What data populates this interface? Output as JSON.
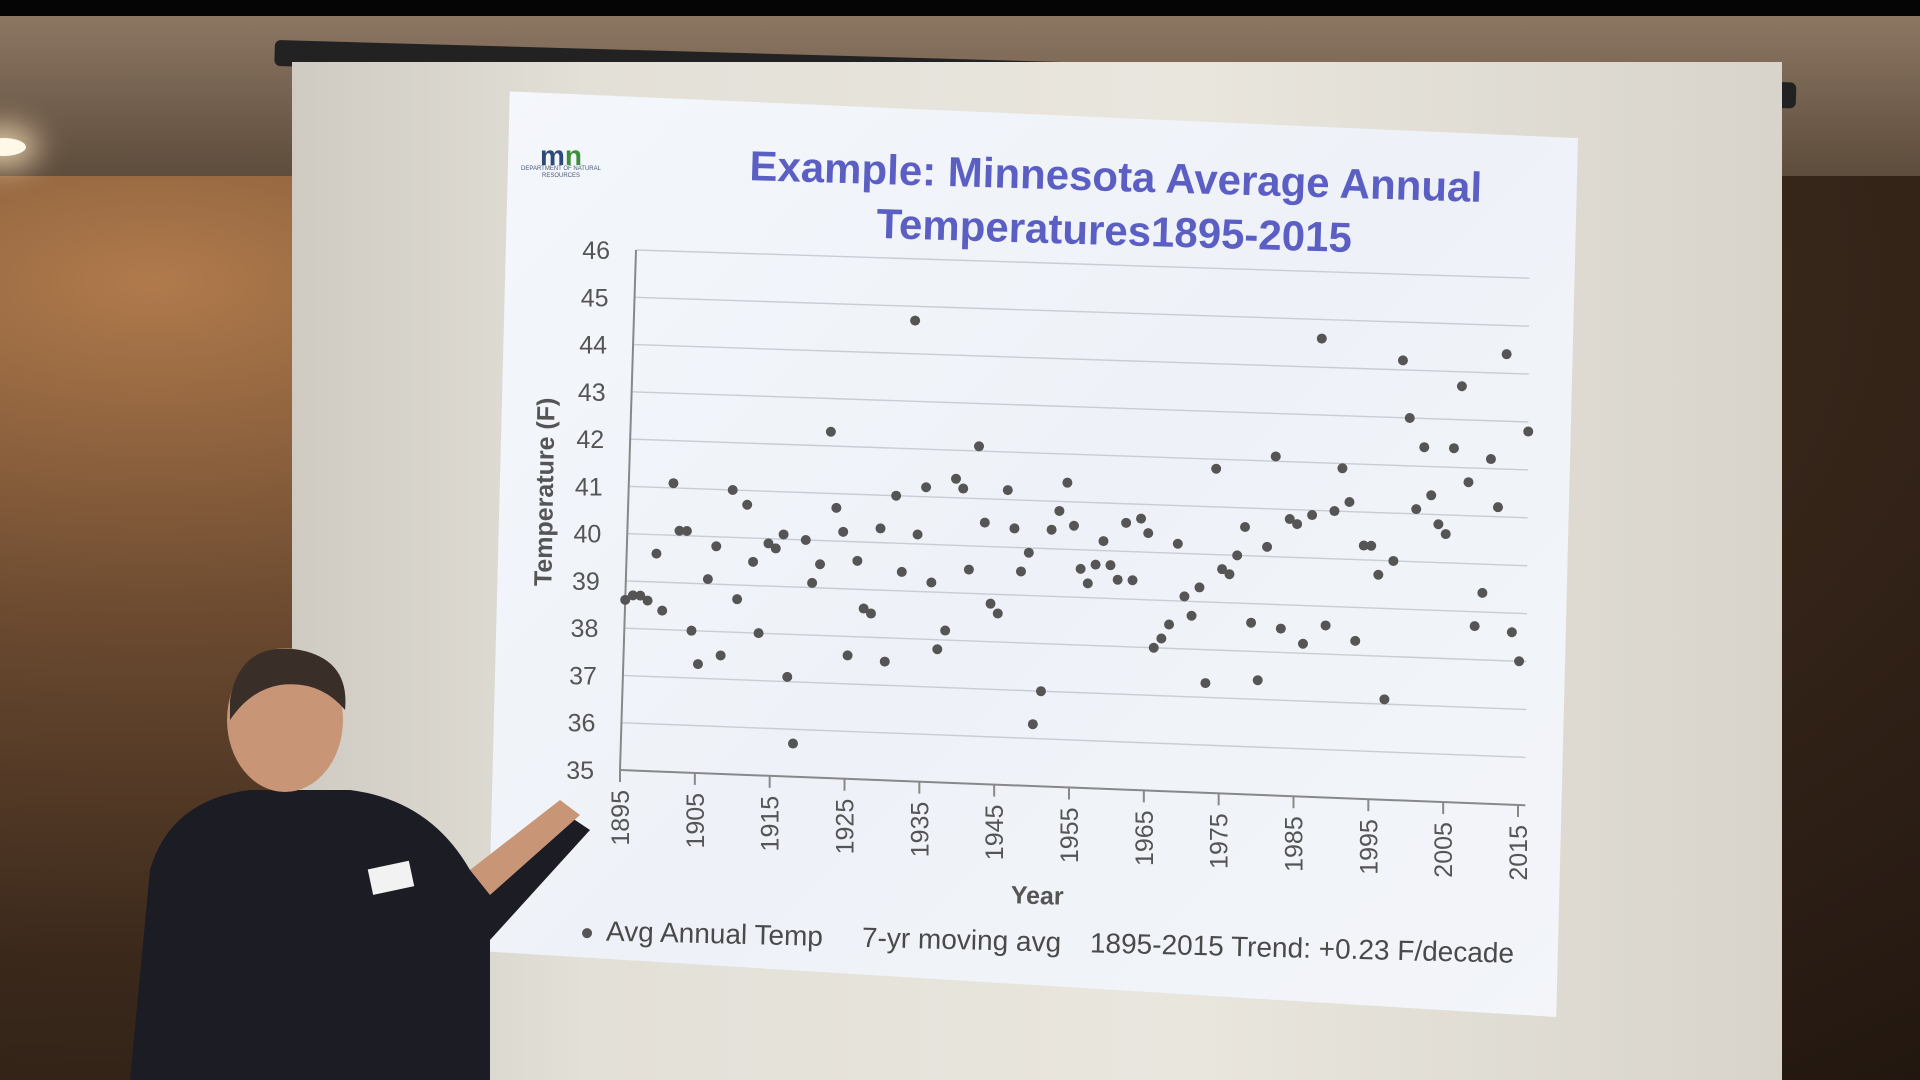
{
  "logo": {
    "mark": "m",
    "mark_accent": "n",
    "subtext": "DEPARTMENT OF NATURAL RESOURCES"
  },
  "chart_data": {
    "type": "scatter",
    "title": "Example: Minnesota Average Annual Temperatures1895-2015",
    "xlabel": "Year",
    "ylabel": "Temperature (F)",
    "xlim": [
      1895,
      2015
    ],
    "ylim": [
      35,
      46
    ],
    "xticks": [
      "1895",
      "1905",
      "1915",
      "1925",
      "1935",
      "1945",
      "1955",
      "1965",
      "1975",
      "1985",
      "1995",
      "2005",
      "2015"
    ],
    "yticks": [
      "35",
      "36",
      "37",
      "38",
      "39",
      "40",
      "41",
      "42",
      "43",
      "44",
      "45",
      "46"
    ],
    "grid": true,
    "series": [
      {
        "name": "Avg Annual Temp",
        "color": "#555555",
        "points": [
          [
            1895,
            38.6
          ],
          [
            1896,
            38.7
          ],
          [
            1897,
            38.7
          ],
          [
            1898,
            38.6
          ],
          [
            1899,
            39.6
          ],
          [
            1900,
            38.4
          ],
          [
            1901,
            41.1
          ],
          [
            1902,
            40.1
          ],
          [
            1903,
            40.1
          ],
          [
            1904,
            38.0
          ],
          [
            1905,
            37.3
          ],
          [
            1906,
            39.1
          ],
          [
            1907,
            39.8
          ],
          [
            1908,
            37.5
          ],
          [
            1909,
            41.0
          ],
          [
            1910,
            38.7
          ],
          [
            1911,
            40.7
          ],
          [
            1912,
            39.5
          ],
          [
            1913,
            38.0
          ],
          [
            1914,
            39.9
          ],
          [
            1915,
            39.8
          ],
          [
            1916,
            40.1
          ],
          [
            1917,
            37.1
          ],
          [
            1918,
            35.7
          ],
          [
            1919,
            40.0
          ],
          [
            1920,
            39.1
          ],
          [
            1921,
            39.5
          ],
          [
            1922,
            42.3
          ],
          [
            1923,
            40.7
          ],
          [
            1924,
            40.2
          ],
          [
            1925,
            37.6
          ],
          [
            1926,
            39.6
          ],
          [
            1927,
            38.6
          ],
          [
            1928,
            38.5
          ],
          [
            1929,
            40.3
          ],
          [
            1930,
            37.5
          ],
          [
            1931,
            41.0
          ],
          [
            1932,
            39.4
          ],
          [
            1933,
            44.7
          ],
          [
            1934,
            40.2
          ],
          [
            1935,
            41.2
          ],
          [
            1936,
            39.2
          ],
          [
            1937,
            37.8
          ],
          [
            1938,
            38.2
          ],
          [
            1939,
            41.4
          ],
          [
            1940,
            41.2
          ],
          [
            1941,
            39.5
          ],
          [
            1942,
            42.1
          ],
          [
            1943,
            40.5
          ],
          [
            1944,
            38.8
          ],
          [
            1945,
            38.6
          ],
          [
            1946,
            41.2
          ],
          [
            1947,
            40.4
          ],
          [
            1948,
            39.5
          ],
          [
            1949,
            39.9
          ],
          [
            1950,
            36.3
          ],
          [
            1951,
            37.0
          ],
          [
            1952,
            40.4
          ],
          [
            1953,
            40.8
          ],
          [
            1954,
            41.4
          ],
          [
            1955,
            40.5
          ],
          [
            1956,
            39.6
          ],
          [
            1957,
            39.3
          ],
          [
            1958,
            39.7
          ],
          [
            1959,
            40.2
          ],
          [
            1960,
            39.7
          ],
          [
            1961,
            39.4
          ],
          [
            1962,
            40.6
          ],
          [
            1963,
            39.4
          ],
          [
            1964,
            40.7
          ],
          [
            1965,
            40.4
          ],
          [
            1966,
            38.0
          ],
          [
            1967,
            38.2
          ],
          [
            1968,
            38.5
          ],
          [
            1969,
            40.2
          ],
          [
            1970,
            39.1
          ],
          [
            1971,
            38.7
          ],
          [
            1972,
            39.3
          ],
          [
            1973,
            37.3
          ],
          [
            1974,
            41.8
          ],
          [
            1975,
            39.7
          ],
          [
            1976,
            39.6
          ],
          [
            1977,
            40.0
          ],
          [
            1978,
            40.6
          ],
          [
            1979,
            38.6
          ],
          [
            1980,
            37.4
          ],
          [
            1981,
            40.2
          ],
          [
            1982,
            42.1
          ],
          [
            1983,
            38.5
          ],
          [
            1984,
            40.8
          ],
          [
            1985,
            40.7
          ],
          [
            1986,
            38.2
          ],
          [
            1987,
            40.9
          ],
          [
            1988,
            44.6
          ],
          [
            1989,
            38.6
          ],
          [
            1990,
            41.0
          ],
          [
            1991,
            41.9
          ],
          [
            1992,
            41.2
          ],
          [
            1993,
            38.3
          ],
          [
            1994,
            40.3
          ],
          [
            1995,
            40.3
          ],
          [
            1996,
            39.7
          ],
          [
            1997,
            37.1
          ],
          [
            1998,
            40.0
          ],
          [
            1999,
            44.2
          ],
          [
            2000,
            43.0
          ],
          [
            2001,
            41.1
          ],
          [
            2002,
            42.4
          ],
          [
            2003,
            41.4
          ],
          [
            2004,
            40.8
          ],
          [
            2005,
            40.6
          ],
          [
            2006,
            42.4
          ],
          [
            2007,
            43.7
          ],
          [
            2008,
            41.7
          ],
          [
            2009,
            38.7
          ],
          [
            2010,
            39.4
          ],
          [
            2011,
            42.2
          ],
          [
            2012,
            41.2
          ],
          [
            2013,
            44.4
          ],
          [
            2014,
            38.6
          ],
          [
            2015,
            38.0
          ],
          [
            2016,
            42.8
          ]
        ]
      }
    ],
    "legend_entries": [
      "Avg Annual Temp",
      "7-yr moving avg",
      "1895-2015 Trend: +0.23 F/decade"
    ],
    "legend_position": "bottom"
  }
}
